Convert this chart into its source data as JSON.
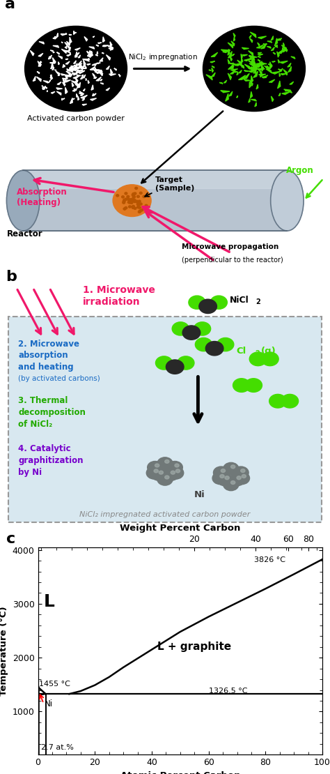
{
  "panel_a_label": "a",
  "panel_b_label": "b",
  "panel_c_label": "c",
  "bg_color": "#ffffff",
  "panel_b_bg": "#d8e8f0",
  "arrow_red": "#f0186a",
  "arrow_black": "#000000",
  "green_color": "#44dd00",
  "blue_color": "#1a6bc4",
  "green_text": "#22aa00",
  "purple_color": "#7700cc",
  "reactor_color": "#b8c4d0",
  "reactor_light": "#d0dae4",
  "reactor_dark": "#8898aa",
  "sample_color": "#e07820",
  "ni_color": "#707878",
  "ni_shine": "#a0aaa8",
  "eutectic_temp": 1326.5,
  "ni_melt_temp": 1455,
  "max_temp": 3826,
  "eutectic_at_pct": 2.7,
  "ylim": [
    200,
    4050
  ],
  "xlim": [
    0,
    100
  ],
  "ylabel": "Temperature (°C)",
  "xlabel": "Atomic Percent Carbon",
  "top_xlabel": "Weight Percent Carbon",
  "yticks": [
    1000,
    2000,
    3000,
    4000
  ],
  "xticks": [
    0,
    20,
    40,
    60,
    80,
    100
  ]
}
